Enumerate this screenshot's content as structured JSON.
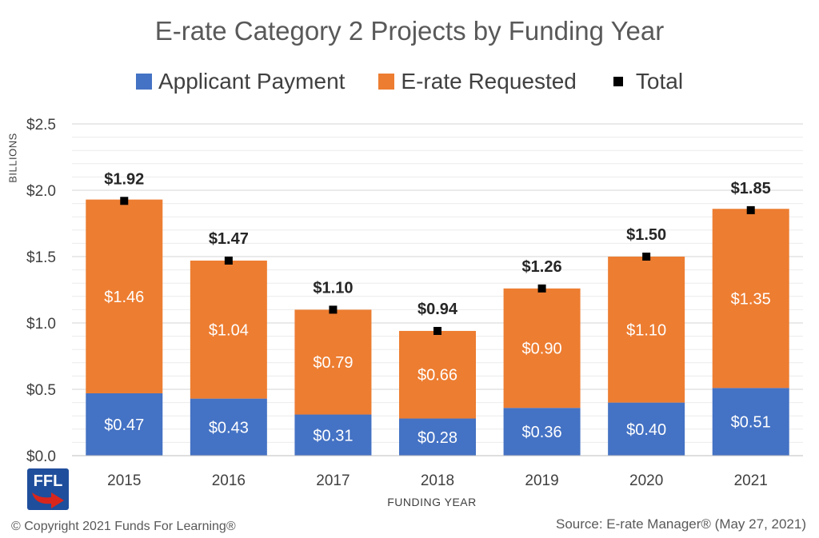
{
  "chart_data": {
    "type": "bar",
    "stacked": true,
    "title": "E-rate Category 2 Projects by Funding Year",
    "xlabel": "FUNDING YEAR",
    "ylabel": "BILLIONS",
    "categories": [
      "2015",
      "2016",
      "2017",
      "2018",
      "2019",
      "2020",
      "2021"
    ],
    "series": [
      {
        "name": "Applicant Payment",
        "color": "#4472C4",
        "values": [
          0.47,
          0.43,
          0.31,
          0.28,
          0.36,
          0.4,
          0.51
        ],
        "labels": [
          "$0.47",
          "$0.43",
          "$0.31",
          "$0.28",
          "$0.36",
          "$0.40",
          "$0.51"
        ]
      },
      {
        "name": "E-rate Requested",
        "color": "#ED7D31",
        "values": [
          1.46,
          1.04,
          0.79,
          0.66,
          0.9,
          1.1,
          1.35
        ],
        "labels": [
          "$1.46",
          "$1.04",
          "$0.79",
          "$0.66",
          "$0.90",
          "$1.10",
          "$1.35"
        ]
      }
    ],
    "total": {
      "name": "Total",
      "values": [
        1.92,
        1.47,
        1.1,
        0.94,
        1.26,
        1.5,
        1.85
      ],
      "labels": [
        "$1.92",
        "$1.47",
        "$1.10",
        "$0.94",
        "$1.26",
        "$1.50",
        "$1.85"
      ]
    },
    "ylim": [
      0,
      2.5
    ],
    "yticks": [
      0,
      0.5,
      1.0,
      1.5,
      2.0,
      2.5
    ],
    "ytick_labels": [
      "$0.0",
      "$0.5",
      "$1.0",
      "$1.5",
      "$2.0",
      "$2.5"
    ],
    "grid": true,
    "legend_position": "top"
  },
  "legend": {
    "applicant": "Applicant Payment",
    "requested": "E-rate Requested",
    "total": "Total"
  },
  "logo_text": "FFL",
  "copyright": "© Copyright 2021 Funds For Learning®",
  "source": "Source: E-rate Manager® (May 27, 2021)"
}
